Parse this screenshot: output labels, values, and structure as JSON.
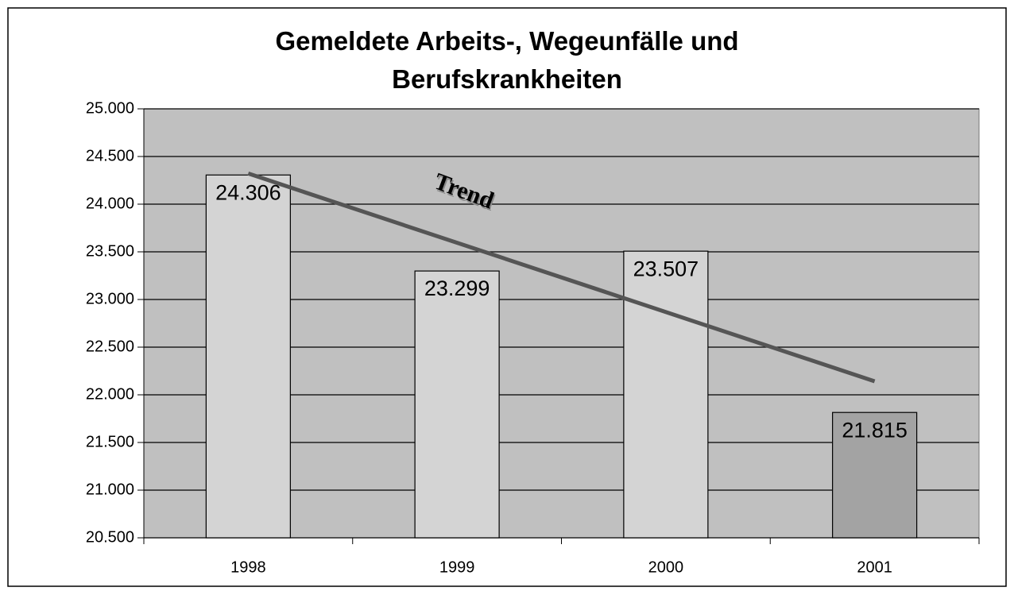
{
  "chart_data": {
    "type": "bar",
    "title": "Gemeldete Arbeits-, Wegeunfälle und Berufskrankheiten",
    "categories": [
      "1998",
      "1999",
      "2000",
      "2001"
    ],
    "values": [
      24306,
      23299,
      23507,
      21815
    ],
    "value_labels": [
      "24.306",
      "23.299",
      "23.507",
      "21.815"
    ],
    "colors": [
      "#d4d4d4",
      "#d4d4d4",
      "#d4d4d4",
      "#a3a3a3"
    ],
    "ylim": [
      20500,
      25000
    ],
    "yticks": [
      {
        "value": 20500,
        "label": "20.500"
      },
      {
        "value": 21000,
        "label": "21.000"
      },
      {
        "value": 21500,
        "label": "21.500"
      },
      {
        "value": 22000,
        "label": "22.000"
      },
      {
        "value": 22500,
        "label": "22.500"
      },
      {
        "value": 23000,
        "label": "23.000"
      },
      {
        "value": 23500,
        "label": "23.500"
      },
      {
        "value": 24000,
        "label": "24.000"
      },
      {
        "value": 24500,
        "label": "24.500"
      },
      {
        "value": 25000,
        "label": "25.000"
      }
    ],
    "grid": true,
    "trend_label": "Trend",
    "trend_color": "#555555"
  }
}
